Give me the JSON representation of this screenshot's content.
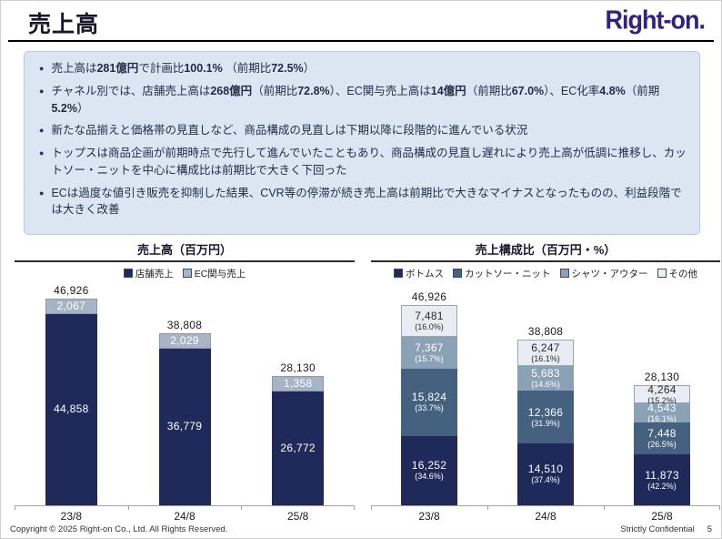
{
  "header": {
    "title": "売上高",
    "logo": "Right-on."
  },
  "colors": {
    "navy": "#1f2a5a",
    "slate": "#44617f",
    "steel": "#8ba1b6",
    "pale": "#e9edf3",
    "ec_light": "#a6b4c5",
    "box_bg": "#dce6f2",
    "logo": "#2e2380"
  },
  "bullets": [
    {
      "segments": [
        {
          "t": "売上高は",
          "b": false
        },
        {
          "t": "281億円",
          "b": true
        },
        {
          "t": "で計画比",
          "b": false
        },
        {
          "t": "100.1%",
          "b": true
        },
        {
          "t": " （前期比",
          "b": false
        },
        {
          "t": "72.5%",
          "b": true
        },
        {
          "t": "）",
          "b": false
        }
      ]
    },
    {
      "segments": [
        {
          "t": "チャネル別では、店舗売上高は",
          "b": false
        },
        {
          "t": "268億円",
          "b": true
        },
        {
          "t": "（前期比",
          "b": false
        },
        {
          "t": "72.8%",
          "b": true
        },
        {
          "t": "）、EC関与売上高は",
          "b": false
        },
        {
          "t": "14億円",
          "b": true
        },
        {
          "t": "（前期比",
          "b": false
        },
        {
          "t": "67.0%",
          "b": true
        },
        {
          "t": "）、EC化率",
          "b": false
        },
        {
          "t": "4.8%",
          "b": true
        },
        {
          "t": "（前期",
          "b": false
        },
        {
          "t": "5.2%",
          "b": true
        },
        {
          "t": "）",
          "b": false
        }
      ]
    },
    {
      "segments": [
        {
          "t": "新たな品揃えと価格帯の見直しなど、商品構成の見直しは下期以降に段階的に進んでいる状況",
          "b": false
        }
      ]
    },
    {
      "segments": [
        {
          "t": "トップスは商品企画が前期時点で先行して進んでいたこともあり、商品構成の見直し遅れにより売上高が低調に推移し、カットソー・ニットを中心に構成比は前期比で大きく下回った",
          "b": false
        }
      ]
    },
    {
      "segments": [
        {
          "t": "ECは過度な値引き販売を抑制した結果、CVR等の停滞が続き売上高は前期比で大きなマイナスとなったものの、利益段階では大きく改善",
          "b": false
        }
      ]
    }
  ],
  "chart_data": [
    {
      "type": "bar",
      "stacked": true,
      "title": "売上高（百万円）",
      "categories": [
        "23/8",
        "24/8",
        "25/8"
      ],
      "totals": [
        46926,
        38808,
        28130
      ],
      "ylim": [
        0,
        50000
      ],
      "grid": false,
      "legend_position": "top",
      "series": [
        {
          "name": "店舗売上",
          "values": [
            44858,
            36779,
            26772
          ],
          "color": "#1f2a5a",
          "text": "#ffffff"
        },
        {
          "name": "EC関与売上",
          "values": [
            2067,
            2029,
            1358
          ],
          "color": "#a6b4c5",
          "text": "#ffffff",
          "border": "#8b98a8"
        }
      ]
    },
    {
      "type": "bar",
      "stacked": true,
      "title": "売上構成比（百万円・%）",
      "categories": [
        "23/8",
        "24/8",
        "25/8"
      ],
      "totals": [
        46926,
        38808,
        28130
      ],
      "ylim": [
        0,
        50000
      ],
      "grid": false,
      "legend_position": "top",
      "series": [
        {
          "name": "ボトムス",
          "values": [
            16252,
            14510,
            11873
          ],
          "pcts": [
            "34.6%",
            "37.4%",
            "42.2%"
          ],
          "color": "#1f2a5a",
          "text": "#ffffff"
        },
        {
          "name": "カットソー・ニット",
          "values": [
            15824,
            12366,
            7448
          ],
          "pcts": [
            "33.7%",
            "31.9%",
            "26.5%"
          ],
          "color": "#44617f",
          "text": "#ffffff"
        },
        {
          "name": "シャツ・アウター",
          "values": [
            7367,
            5683,
            4543
          ],
          "pcts": [
            "15.7%",
            "14.6%",
            "16.1%"
          ],
          "color": "#8ba1b6",
          "text": "#ffffff"
        },
        {
          "name": "その他",
          "values": [
            7481,
            6247,
            4264
          ],
          "pcts": [
            "16.0%",
            "16.1%",
            "15.2%"
          ],
          "color": "#e9edf3",
          "text": "#2b2b2b",
          "border": "#9aa5b1"
        }
      ]
    }
  ],
  "footer": {
    "copyright": "Copyright © 2025 Right-on Co., Ltd.  All Rights Reserved.",
    "confidential": "Strictly Confidential",
    "page": "5"
  }
}
